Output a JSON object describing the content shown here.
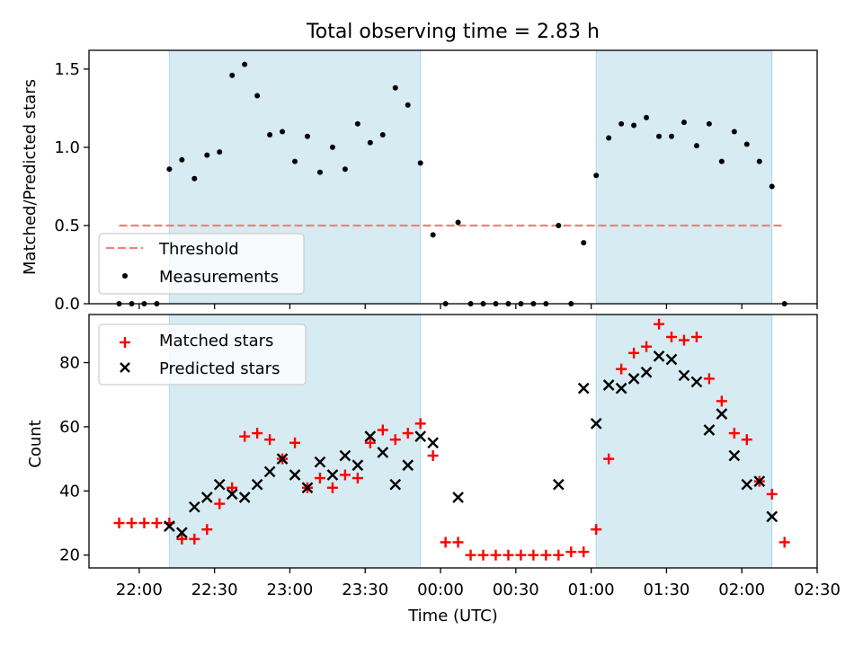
{
  "chart_data": [
    {
      "type": "scatter",
      "title": "Total observing time = 2.83 h",
      "ylabel": "Matched/Predicted stars",
      "ylim": [
        0,
        1.62
      ],
      "yticks": [
        0.0,
        0.5,
        1.0,
        1.5
      ],
      "ytick_labels": [
        "0.0",
        "0.5",
        "1.0",
        "1.5"
      ],
      "xlim": [
        "21:40",
        "02:30"
      ],
      "shaded_intervals": [
        [
          "22:12",
          "23:52"
        ],
        [
          "01:02",
          "02:12"
        ]
      ],
      "shade_color": "#add8e6",
      "legend": {
        "position": "lower-left",
        "entries": [
          "Threshold",
          "Measurements"
        ]
      },
      "series": [
        {
          "name": "Threshold",
          "kind": "dashed-line",
          "color": "#f08080",
          "x": [
            "21:52",
            "02:17"
          ],
          "y": [
            0.5,
            0.5
          ]
        },
        {
          "name": "Measurements",
          "kind": "dot",
          "color": "#000000",
          "x": [
            "21:52",
            "21:57",
            "22:02",
            "22:07",
            "22:12",
            "22:17",
            "22:22",
            "22:27",
            "22:32",
            "22:37",
            "22:42",
            "22:47",
            "22:52",
            "22:57",
            "23:02",
            "23:07",
            "23:12",
            "23:17",
            "23:22",
            "23:27",
            "23:32",
            "23:37",
            "23:42",
            "23:47",
            "23:52",
            "23:57",
            "00:02",
            "00:07",
            "00:12",
            "00:17",
            "00:22",
            "00:27",
            "00:32",
            "00:37",
            "00:42",
            "00:47",
            "00:52",
            "00:57",
            "01:02",
            "01:07",
            "01:12",
            "01:17",
            "01:22",
            "01:27",
            "01:32",
            "01:37",
            "01:42",
            "01:47",
            "01:52",
            "01:57",
            "02:02",
            "02:07",
            "02:12",
            "02:17"
          ],
          "y": [
            0.0,
            0.0,
            0.0,
            0.0,
            0.86,
            0.92,
            0.8,
            0.95,
            0.97,
            1.46,
            1.53,
            1.33,
            1.08,
            1.1,
            0.91,
            1.07,
            0.84,
            1.0,
            0.86,
            1.15,
            1.03,
            1.08,
            1.38,
            1.27,
            0.9,
            0.44,
            0.0,
            0.52,
            0.0,
            0.0,
            0.0,
            0.0,
            0.0,
            0.0,
            0.0,
            0.5,
            0.0,
            0.39,
            0.82,
            1.06,
            1.15,
            1.14,
            1.19,
            1.07,
            1.07,
            1.16,
            1.01,
            1.15,
            0.91,
            1.1,
            1.02,
            0.91,
            0.75,
            0.0
          ]
        }
      ]
    },
    {
      "type": "scatter",
      "xlabel": "Time (UTC)",
      "ylabel": "Count",
      "ylim": [
        16,
        95
      ],
      "yticks": [
        20,
        40,
        60,
        80
      ],
      "ytick_labels": [
        "20",
        "40",
        "60",
        "80"
      ],
      "xlim": [
        "21:40",
        "02:30"
      ],
      "xticks": [
        "22:00",
        "22:30",
        "23:00",
        "23:30",
        "00:00",
        "00:30",
        "01:00",
        "01:30",
        "02:00",
        "02:30"
      ],
      "shaded_intervals": [
        [
          "22:12",
          "23:52"
        ],
        [
          "01:02",
          "02:12"
        ]
      ],
      "shade_color": "#add8e6",
      "legend": {
        "position": "top-left",
        "entries": [
          "Matched stars",
          "Predicted stars"
        ]
      },
      "series": [
        {
          "name": "Matched stars",
          "kind": "plus",
          "color": "#ff0000",
          "x": [
            "21:52",
            "21:57",
            "22:02",
            "22:07",
            "22:12",
            "22:17",
            "22:22",
            "22:27",
            "22:32",
            "22:37",
            "22:42",
            "22:47",
            "22:52",
            "22:57",
            "23:02",
            "23:07",
            "23:12",
            "23:17",
            "23:22",
            "23:27",
            "23:32",
            "23:37",
            "23:42",
            "23:47",
            "23:52",
            "23:57",
            "00:02",
            "00:07",
            "00:12",
            "00:17",
            "00:22",
            "00:27",
            "00:32",
            "00:37",
            "00:42",
            "00:47",
            "00:52",
            "00:57",
            "01:02",
            "01:07",
            "01:12",
            "01:17",
            "01:22",
            "01:27",
            "01:32",
            "01:37",
            "01:42",
            "01:47",
            "01:52",
            "01:57",
            "02:02",
            "02:07",
            "02:12",
            "02:17"
          ],
          "y": [
            30,
            30,
            30,
            30,
            30,
            25,
            25,
            28,
            36,
            41,
            57,
            58,
            56,
            50,
            55,
            41,
            44,
            41,
            45,
            44,
            55,
            59,
            56,
            58,
            61,
            51,
            24,
            24,
            20,
            20,
            20,
            20,
            20,
            20,
            20,
            20,
            21,
            21,
            28,
            50,
            78,
            83,
            85,
            92,
            88,
            87,
            88,
            75,
            68,
            58,
            56,
            43,
            39,
            24
          ]
        },
        {
          "name": "Predicted stars",
          "kind": "x",
          "color": "#000000",
          "x": [
            "22:12",
            "22:17",
            "22:22",
            "22:27",
            "22:32",
            "22:37",
            "22:42",
            "22:47",
            "22:52",
            "22:57",
            "23:02",
            "23:07",
            "23:12",
            "23:17",
            "23:22",
            "23:27",
            "23:32",
            "23:37",
            "23:42",
            "23:47",
            "23:52",
            "23:57",
            "00:07",
            "00:47",
            "00:57",
            "01:02",
            "01:07",
            "01:12",
            "01:17",
            "01:22",
            "01:27",
            "01:32",
            "01:37",
            "01:42",
            "01:47",
            "01:52",
            "01:57",
            "02:02",
            "02:07",
            "02:12"
          ],
          "y": [
            29,
            27,
            35,
            38,
            42,
            39,
            38,
            42,
            46,
            50,
            45,
            41,
            49,
            45,
            51,
            48,
            57,
            52,
            42,
            48,
            57,
            55,
            38,
            42,
            72,
            61,
            73,
            72,
            75,
            77,
            82,
            81,
            76,
            74,
            59,
            64,
            51,
            42,
            43,
            32
          ]
        }
      ]
    }
  ]
}
